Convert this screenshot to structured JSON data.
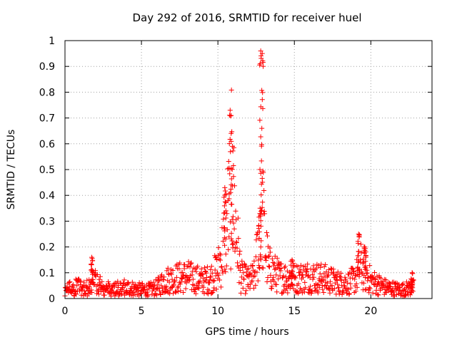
{
  "chart_data": {
    "type": "scatter",
    "title": "Day 292 of 2016, SRMTID for receiver huel",
    "xlabel": "GPS time / hours",
    "ylabel": "SRMTID / TECUs",
    "xlim": [
      0,
      24
    ],
    "ylim": [
      0,
      1
    ],
    "xticks": [
      0,
      5,
      10,
      15,
      20
    ],
    "xtick_labels": [
      "0",
      "5",
      "10",
      "15",
      "20"
    ],
    "yticks": [
      0,
      0.1,
      0.2,
      0.3,
      0.4,
      0.5,
      0.6,
      0.7,
      0.8,
      0.9,
      1
    ],
    "ytick_labels": [
      "0",
      "0.1",
      "0.2",
      "0.3",
      "0.4",
      "0.5",
      "0.6",
      "0.7",
      "0.8",
      "0.9",
      "1"
    ],
    "grid": true,
    "marker": "+",
    "series": [
      {
        "name": "SRMTID",
        "color": "#ff0000",
        "profile": [
          [
            0.0,
            0.04
          ],
          [
            0.5,
            0.05
          ],
          [
            1.0,
            0.05
          ],
          [
            1.5,
            0.05
          ],
          [
            1.8,
            0.1
          ],
          [
            2.2,
            0.06
          ],
          [
            3.0,
            0.04
          ],
          [
            4.0,
            0.05
          ],
          [
            5.0,
            0.04
          ],
          [
            5.5,
            0.04
          ],
          [
            6.0,
            0.05
          ],
          [
            6.5,
            0.08
          ],
          [
            7.0,
            0.09
          ],
          [
            8.0,
            0.1
          ],
          [
            9.0,
            0.08
          ],
          [
            9.5,
            0.09
          ],
          [
            10.0,
            0.13
          ],
          [
            10.3,
            0.22
          ],
          [
            10.7,
            0.4
          ],
          [
            10.9,
            0.55
          ],
          [
            11.2,
            0.3
          ],
          [
            11.5,
            0.1
          ],
          [
            12.0,
            0.08
          ],
          [
            12.4,
            0.1
          ],
          [
            12.6,
            0.22
          ],
          [
            12.85,
            0.5
          ],
          [
            13.0,
            0.3
          ],
          [
            13.3,
            0.14
          ],
          [
            14.0,
            0.1
          ],
          [
            15.0,
            0.09
          ],
          [
            16.0,
            0.1
          ],
          [
            17.0,
            0.09
          ],
          [
            18.0,
            0.07
          ],
          [
            18.5,
            0.07
          ],
          [
            19.0,
            0.09
          ],
          [
            19.3,
            0.15
          ],
          [
            19.6,
            0.12
          ],
          [
            20.0,
            0.08
          ],
          [
            21.0,
            0.05
          ],
          [
            22.0,
            0.04
          ],
          [
            22.8,
            0.05
          ]
        ],
        "peaks": [
          {
            "x": 1.75,
            "y": 0.16
          },
          {
            "x": 10.45,
            "y": 0.43
          },
          {
            "x": 10.8,
            "y": 0.73
          },
          {
            "x": 10.95,
            "y": 0.59
          },
          {
            "x": 12.8,
            "y": 0.96
          },
          {
            "x": 12.9,
            "y": 0.95
          },
          {
            "x": 12.75,
            "y": 0.33
          },
          {
            "x": 14.85,
            "y": 0.15
          },
          {
            "x": 19.2,
            "y": 0.25
          },
          {
            "x": 19.6,
            "y": 0.2
          },
          {
            "x": 22.7,
            "y": 0.1
          }
        ]
      }
    ]
  }
}
